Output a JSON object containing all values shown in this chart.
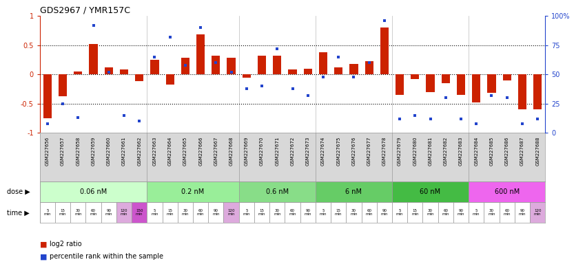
{
  "title": "GDS2967 / YMR157C",
  "samples": [
    "GSM227656",
    "GSM227657",
    "GSM227658",
    "GSM227659",
    "GSM227660",
    "GSM227661",
    "GSM227662",
    "GSM227663",
    "GSM227664",
    "GSM227665",
    "GSM227666",
    "GSM227667",
    "GSM227668",
    "GSM227669",
    "GSM227670",
    "GSM227671",
    "GSM227672",
    "GSM227673",
    "GSM227674",
    "GSM227675",
    "GSM227676",
    "GSM227677",
    "GSM227678",
    "GSM227679",
    "GSM227680",
    "GSM227681",
    "GSM227682",
    "GSM227683",
    "GSM227684",
    "GSM227685",
    "GSM227686",
    "GSM227687",
    "GSM227688"
  ],
  "log2_ratio": [
    -0.75,
    -0.38,
    0.05,
    0.52,
    0.12,
    0.08,
    -0.12,
    0.25,
    -0.18,
    0.28,
    0.68,
    0.32,
    0.28,
    -0.06,
    0.32,
    0.32,
    0.08,
    0.1,
    0.38,
    0.12,
    0.18,
    0.22,
    0.8,
    -0.35,
    -0.08,
    -0.3,
    -0.15,
    -0.35,
    -0.48,
    -0.32,
    -0.1,
    -0.6,
    -0.6
  ],
  "percentile": [
    8,
    25,
    13,
    92,
    52,
    15,
    10,
    65,
    82,
    58,
    90,
    60,
    52,
    38,
    40,
    72,
    38,
    32,
    48,
    65,
    48,
    60,
    96,
    12,
    15,
    12,
    30,
    12,
    8,
    32,
    30,
    8,
    12
  ],
  "doses": [
    {
      "label": "0.06 nM",
      "start": 0,
      "end": 7,
      "color": "#ccffcc"
    },
    {
      "label": "0.2 nM",
      "start": 7,
      "end": 13,
      "color": "#99ee99"
    },
    {
      "label": "0.6 nM",
      "start": 13,
      "end": 18,
      "color": "#88dd88"
    },
    {
      "label": "6 nM",
      "start": 18,
      "end": 23,
      "color": "#66cc66"
    },
    {
      "label": "60 nM",
      "start": 23,
      "end": 28,
      "color": "#44bb44"
    },
    {
      "label": "600 nM",
      "start": 28,
      "end": 33,
      "color": "#ee66ee"
    }
  ],
  "times": [
    "5\nmin",
    "15\nmin",
    "30\nmin",
    "60\nmin",
    "90\nmin",
    "120\nmin",
    "150\nmin",
    "5\nmin",
    "15\nmin",
    "30\nmin",
    "60\nmin",
    "90\nmin",
    "120\nmin",
    "5\nmin",
    "15\nmin",
    "30\nmin",
    "60\nmin",
    "90\nmin",
    "5\nmin",
    "15\nmin",
    "30\nmin",
    "60\nmin",
    "90\nmin",
    "5\nmin",
    "15\nmin",
    "30\nmin",
    "60\nmin",
    "90\nmin",
    "5\nmin",
    "30\nmin",
    "60\nmin",
    "90\nmin",
    "120\nmin"
  ],
  "time_colors": [
    "#ffffff",
    "#ffffff",
    "#ffffff",
    "#ffffff",
    "#ffffff",
    "#ddaadd",
    "#cc55cc",
    "#ffffff",
    "#ffffff",
    "#ffffff",
    "#ffffff",
    "#ffffff",
    "#ddaadd",
    "#ffffff",
    "#ffffff",
    "#ffffff",
    "#ffffff",
    "#ffffff",
    "#ffffff",
    "#ffffff",
    "#ffffff",
    "#ffffff",
    "#ffffff",
    "#ffffff",
    "#ffffff",
    "#ffffff",
    "#ffffff",
    "#ffffff",
    "#ffffff",
    "#ffffff",
    "#ffffff",
    "#ffffff",
    "#ddaadd"
  ],
  "bar_color": "#cc2200",
  "square_color": "#2244cc",
  "bg_color": "#ffffff",
  "ylim": [
    -1,
    1
  ],
  "dotted_lines": [
    0.5,
    0.0,
    -0.5
  ],
  "label_row_color": "#d8d8d8"
}
